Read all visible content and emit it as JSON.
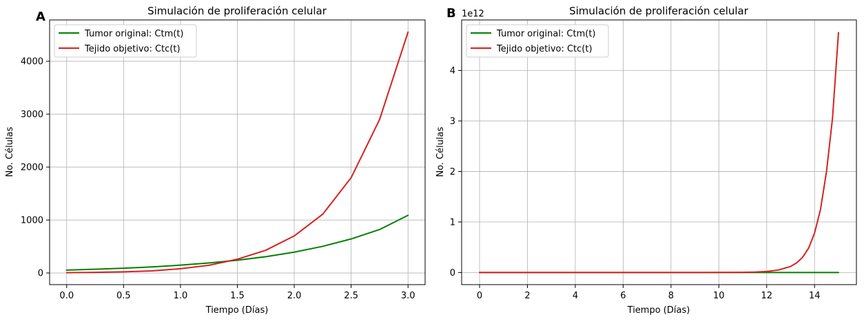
{
  "chart_data": [
    {
      "panel_label": "A",
      "type": "line",
      "title": "Simulación de proliferación celular",
      "xlabel": "Tiempo (Días)",
      "ylabel": "No. Células",
      "xlim": [
        -0.15,
        3.15
      ],
      "ylim": [
        -220,
        4780
      ],
      "xticks": [
        0.0,
        0.5,
        1.0,
        1.5,
        2.0,
        2.5,
        3.0
      ],
      "xtick_labels": [
        "0.0",
        "0.5",
        "1.0",
        "1.5",
        "2.0",
        "2.5",
        "3.0"
      ],
      "yticks": [
        0,
        1000,
        2000,
        3000,
        4000
      ],
      "ytick_labels": [
        "0",
        "1000",
        "2000",
        "3000",
        "4000"
      ],
      "y_offset_label": "",
      "grid": true,
      "legend_position": "top-left",
      "series": [
        {
          "name": "Tumor original: Ctm(t)",
          "color": "#008000",
          "x": [
            0.0,
            0.25,
            0.5,
            0.75,
            1.0,
            1.25,
            1.5,
            1.75,
            2.0,
            2.25,
            2.5,
            2.75,
            3.0
          ],
          "y": [
            55,
            71,
            90,
            115,
            148,
            189,
            241,
            308,
            394,
            503,
            643,
            821,
            1090
          ]
        },
        {
          "name": "Tejido objetivo: Ctc(t)",
          "color": "#d62020",
          "x": [
            0.0,
            0.25,
            0.5,
            0.75,
            1.0,
            1.25,
            1.5,
            1.75,
            2.0,
            2.25,
            2.5,
            2.75,
            3.0
          ],
          "y": [
            5,
            12,
            22,
            40,
            80,
            145,
            260,
            430,
            700,
            1110,
            1800,
            2900,
            4550
          ]
        }
      ]
    },
    {
      "panel_label": "B",
      "type": "line",
      "title": "Simulación de proliferación celular",
      "xlabel": "Tiempo (Días)",
      "ylabel": "No. Células",
      "xlim": [
        -0.75,
        15.75
      ],
      "ylim": [
        -0.24,
        5.0
      ],
      "xticks": [
        0,
        2,
        4,
        6,
        8,
        10,
        12,
        14
      ],
      "xtick_labels": [
        "0",
        "2",
        "4",
        "6",
        "8",
        "10",
        "12",
        "14"
      ],
      "yticks": [
        0,
        1,
        2,
        3,
        4
      ],
      "ytick_labels": [
        "0",
        "1",
        "2",
        "3",
        "4"
      ],
      "y_offset_label": "1e12",
      "grid": true,
      "legend_position": "top-left",
      "series": [
        {
          "name": "Tumor original: Ctm(t)",
          "color": "#008000",
          "x": [
            0,
            2,
            4,
            6,
            8,
            10,
            12,
            14,
            15
          ],
          "y": [
            0,
            0,
            0,
            0,
            0,
            0,
            0,
            0,
            0
          ]
        },
        {
          "name": "Tejido objetivo: Ctc(t)",
          "color": "#d62020",
          "x": [
            0,
            2,
            4,
            6,
            8,
            10,
            11,
            11.5,
            12,
            12.5,
            13,
            13.25,
            13.5,
            13.75,
            14,
            14.25,
            14.5,
            14.75,
            15
          ],
          "y": [
            0,
            0,
            0,
            0,
            0,
            0.001,
            0.004,
            0.009,
            0.02,
            0.05,
            0.12,
            0.19,
            0.3,
            0.48,
            0.78,
            1.25,
            2.0,
            3.05,
            4.75
          ]
        }
      ]
    }
  ]
}
